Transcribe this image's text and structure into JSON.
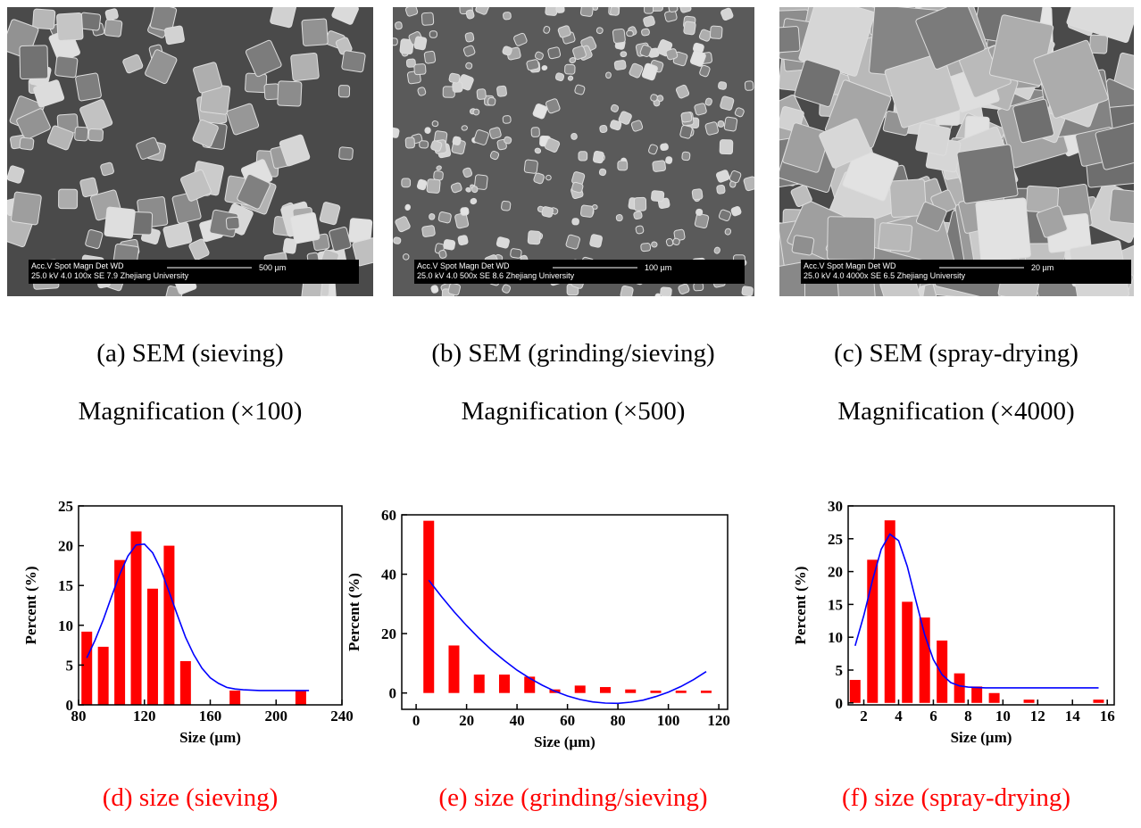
{
  "panels": [
    {
      "caption": "(a) SEM (sieving)",
      "magnification": "Magnification (×100)",
      "sem_header": "Acc.V   Spot Magn     Det  WD",
      "sem_values": "25.0 kV 4.0   100x     SE   7.9   Zhejiang University",
      "sem_scale": "500 µm"
    },
    {
      "caption": "(b)  SEM (grinding/sieving)",
      "magnification": "Magnification (×500)",
      "sem_header": "Acc.V   Spot Magn     Det  WD",
      "sem_values": "25.0 kV 4.0   500x     SE   8.6   Zhejiang University",
      "sem_scale": "100 µm"
    },
    {
      "caption": "(c) SEM (spray-drying)",
      "magnification": "Magnification (×4000)",
      "sem_header": "Acc.V   Spot Magn     Det  WD",
      "sem_values": "25.0 kV 4.0   4000x   SE   6.5   Zhejiang University",
      "sem_scale": "20 µm"
    }
  ],
  "chart_data": [
    {
      "type": "bar",
      "caption": "(d) size (sieving)",
      "xlabel": "Size (µm)",
      "ylabel": "Percent (%)",
      "x": [
        85,
        95,
        105,
        115,
        125,
        135,
        145,
        175,
        215
      ],
      "values": [
        9.2,
        7.3,
        18.2,
        21.8,
        14.6,
        20,
        5.5,
        1.8,
        1.8
      ],
      "color": "#ff0000",
      "fit": {
        "x": [
          85,
          90,
          95,
          100,
          105,
          110,
          115,
          120,
          125,
          130,
          135,
          140,
          145,
          150,
          155,
          160,
          165,
          170,
          175,
          180,
          190,
          200,
          210,
          220
        ],
        "values": [
          5.9,
          8.1,
          10.7,
          13.6,
          16.4,
          18.7,
          20.1,
          20.2,
          19.1,
          17.0,
          14.2,
          11.3,
          8.5,
          6.3,
          4.6,
          3.4,
          2.7,
          2.2,
          2.0,
          1.9,
          1.8,
          1.8,
          1.8,
          1.8
        ],
        "color": "#0000ff"
      },
      "xlim": [
        80,
        240
      ],
      "ylim": [
        0,
        25
      ],
      "xticks": [
        80,
        120,
        160,
        200,
        240
      ],
      "yticks": [
        0,
        5,
        10,
        15,
        20,
        25
      ]
    },
    {
      "type": "bar",
      "caption": "(e) size (grinding/sieving)",
      "xlabel": "Size (μm)",
      "ylabel": "Percent (%)",
      "x": [
        5,
        15,
        25,
        35,
        45,
        55,
        65,
        75,
        85,
        95,
        105,
        115
      ],
      "values": [
        58,
        16,
        6.2,
        6.2,
        5.5,
        1.2,
        2.5,
        2,
        1.2,
        0.8,
        0.8,
        0.8
      ],
      "color": "#ff0000",
      "fit": {
        "x": [
          5,
          10,
          15,
          20,
          25,
          30,
          35,
          40,
          45,
          50,
          55,
          60,
          65,
          70,
          75,
          80,
          85,
          90,
          95,
          100,
          105,
          110,
          115
        ],
        "values": [
          38.0,
          32.5,
          27.4,
          22.7,
          18.4,
          14.4,
          10.9,
          7.7,
          5.0,
          2.6,
          0.6,
          -1.0,
          -2.2,
          -3.0,
          -3.4,
          -3.5,
          -3.1,
          -2.4,
          -1.2,
          0.3,
          2.2,
          4.5,
          7.2
        ],
        "color": "#0000ff"
      },
      "xlim": [
        -5.7,
        123.5
      ],
      "ylim": [
        -5.5,
        60
      ],
      "xticks": [
        0,
        20,
        40,
        60,
        80,
        100,
        120
      ],
      "yticks": [
        0,
        20,
        40,
        60
      ]
    },
    {
      "type": "bar",
      "caption": "(f) size (spray-drying)",
      "xlabel": "Size (µm)",
      "ylabel": "Percent (%)",
      "x": [
        1.5,
        2.5,
        3.5,
        4.5,
        5.5,
        6.5,
        7.5,
        8.5,
        9.5,
        11.5,
        15.5
      ],
      "values": [
        3.5,
        21.8,
        27.8,
        15.4,
        13,
        9.5,
        4.5,
        2.5,
        1.5,
        0.5,
        0.5
      ],
      "color": "#ff0000",
      "fit": {
        "x": [
          1.5,
          2,
          2.5,
          3,
          3.5,
          4,
          4.5,
          5,
          5.5,
          6,
          6.5,
          7,
          7.5,
          8,
          9,
          10,
          12,
          14,
          15.5
        ],
        "values": [
          8.7,
          13.3,
          18.7,
          23.4,
          25.7,
          24.7,
          20.8,
          15.5,
          10.4,
          6.6,
          4.3,
          3.1,
          2.6,
          2.4,
          2.3,
          2.3,
          2.3,
          2.3,
          2.3
        ],
        "color": "#0000ff"
      },
      "xlim": [
        1.1,
        16.4
      ],
      "ylim": [
        -0.3,
        30
      ],
      "xticks": [
        2,
        4,
        6,
        8,
        10,
        12,
        14,
        16
      ],
      "yticks": [
        0,
        5,
        10,
        15,
        20,
        25,
        30
      ]
    }
  ]
}
